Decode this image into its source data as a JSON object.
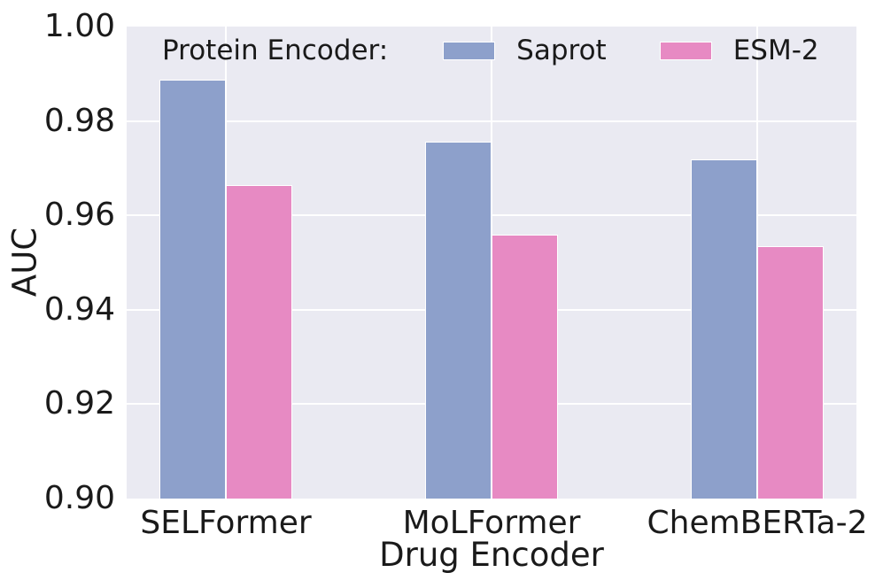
{
  "figure": {
    "background": "#ffffff",
    "plot_background": "#eaeaf2",
    "grid_color": "#ffffff",
    "text_color": "#1a1a1a"
  },
  "chart_data": {
    "type": "bar",
    "title": "",
    "xlabel": "Drug Encoder",
    "ylabel": "AUC",
    "categories": [
      "SELFormer",
      "MoLFormer",
      "ChemBERTa-2"
    ],
    "series": [
      {
        "name": "Saprot",
        "color": "#8da0cb",
        "values": [
          0.9888,
          0.9757,
          0.9718
        ]
      },
      {
        "name": "ESM-2",
        "color": "#e78ac3",
        "values": [
          0.9665,
          0.9559,
          0.9534
        ]
      }
    ],
    "legend": {
      "title": "Protein Encoder:",
      "position": "upper center inside",
      "entries": [
        "Saprot",
        "ESM-2"
      ]
    },
    "ylim": [
      0.9,
      1.0
    ],
    "yticks": [
      {
        "value": 1.0,
        "label": "1.00"
      },
      {
        "value": 0.98,
        "label": "0.98"
      },
      {
        "value": 0.96,
        "label": "0.96"
      },
      {
        "value": 0.94,
        "label": "0.94"
      },
      {
        "value": 0.92,
        "label": "0.92"
      },
      {
        "value": 0.9,
        "label": "0.90"
      }
    ],
    "grid": true
  }
}
